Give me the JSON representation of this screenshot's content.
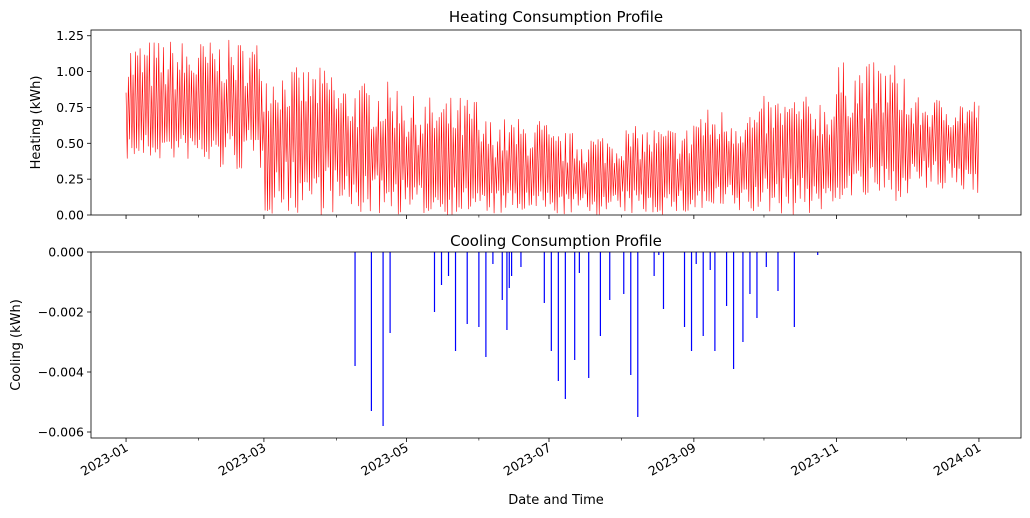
{
  "chart_data": [
    {
      "type": "line",
      "title": "Heating Consumption Profile",
      "xlabel": "",
      "ylabel": "Heating (kWh)",
      "ylim": [
        0.0,
        1.29
      ],
      "yticks": [
        "0.00",
        "0.25",
        "0.50",
        "0.75",
        "1.00",
        "1.25"
      ],
      "ytick_values": [
        0.0,
        0.25,
        0.5,
        0.75,
        1.0,
        1.25
      ],
      "color": "#ff0000",
      "grid": false,
      "monthly_profile": [
        {
          "month": "2023-01",
          "min": 0.38,
          "mean": 0.65,
          "max": 1.23
        },
        {
          "month": "2023-02",
          "min": 0.3,
          "mean": 0.72,
          "max": 1.22
        },
        {
          "month": "2023-03",
          "min": 0.0,
          "mean": 0.55,
          "max": 1.03
        },
        {
          "month": "2023-04",
          "min": 0.0,
          "mean": 0.4,
          "max": 0.93
        },
        {
          "month": "2023-05",
          "min": 0.0,
          "mean": 0.3,
          "max": 0.83
        },
        {
          "month": "2023-06",
          "min": 0.0,
          "mean": 0.25,
          "max": 0.68
        },
        {
          "month": "2023-07",
          "min": 0.0,
          "mean": 0.22,
          "max": 0.58
        },
        {
          "month": "2023-08",
          "min": 0.0,
          "mean": 0.25,
          "max": 0.62
        },
        {
          "month": "2023-09",
          "min": 0.0,
          "mean": 0.32,
          "max": 0.75
        },
        {
          "month": "2023-10",
          "min": 0.0,
          "mean": 0.38,
          "max": 0.83
        },
        {
          "month": "2023-11",
          "min": 0.1,
          "mean": 0.45,
          "max": 1.07
        },
        {
          "month": "2023-12",
          "min": 0.15,
          "mean": 0.48,
          "max": 0.82
        }
      ]
    },
    {
      "type": "bar",
      "title": "Cooling Consumption Profile",
      "xlabel": "Date and Time",
      "ylabel": "Cooling (kWh)",
      "ylim": [
        -0.0062,
        0.0
      ],
      "yticks": [
        "0.000",
        "−0.002",
        "−0.004",
        "−0.006"
      ],
      "ytick_values": [
        0.0,
        -0.002,
        -0.004,
        -0.006
      ],
      "color": "#0000ff",
      "grid": false,
      "x": [
        "2023-04-09",
        "2023-04-16",
        "2023-04-21",
        "2023-04-24",
        "2023-05-13",
        "2023-05-16",
        "2023-05-19",
        "2023-05-22",
        "2023-05-27",
        "2023-06-01",
        "2023-06-04",
        "2023-06-07",
        "2023-06-11",
        "2023-06-13",
        "2023-06-14",
        "2023-06-15",
        "2023-06-19",
        "2023-06-29",
        "2023-07-02",
        "2023-07-05",
        "2023-07-08",
        "2023-07-12",
        "2023-07-14",
        "2023-07-18",
        "2023-07-23",
        "2023-07-27",
        "2023-08-02",
        "2023-08-05",
        "2023-08-08",
        "2023-08-15",
        "2023-08-17",
        "2023-08-19",
        "2023-08-28",
        "2023-08-31",
        "2023-09-02",
        "2023-09-05",
        "2023-09-08",
        "2023-09-10",
        "2023-09-15",
        "2023-09-18",
        "2023-09-22",
        "2023-09-25",
        "2023-09-28",
        "2023-10-02",
        "2023-10-07",
        "2023-10-14",
        "2023-10-24"
      ],
      "values": [
        -0.0038,
        -0.0053,
        -0.0058,
        -0.0027,
        -0.002,
        -0.0011,
        -0.0008,
        -0.0033,
        -0.0024,
        -0.0025,
        -0.0035,
        -0.0004,
        -0.0016,
        -0.0026,
        -0.0012,
        -0.0008,
        -0.0005,
        -0.0017,
        -0.0033,
        -0.0043,
        -0.0049,
        -0.0036,
        -0.0007,
        -0.0042,
        -0.0028,
        -0.0016,
        -0.0014,
        -0.0041,
        -0.0055,
        -0.0008,
        -0.0001,
        -0.0019,
        -0.0025,
        -0.0033,
        -0.0004,
        -0.0028,
        -0.0006,
        -0.0033,
        -0.0018,
        -0.0039,
        -0.003,
        -0.0014,
        -0.0022,
        -0.0005,
        -0.0013,
        -0.0025,
        -0.0001
      ]
    }
  ],
  "x_axis": {
    "range": [
      "2022-12-17",
      "2024-01-19"
    ],
    "tick_labels": [
      "2023-01",
      "2023-03",
      "2023-05",
      "2023-07",
      "2023-09",
      "2023-11",
      "2024-01"
    ],
    "tick_dates": [
      "2023-01-01",
      "2023-03-01",
      "2023-05-01",
      "2023-07-01",
      "2023-09-01",
      "2023-11-01",
      "2024-01-01"
    ]
  }
}
